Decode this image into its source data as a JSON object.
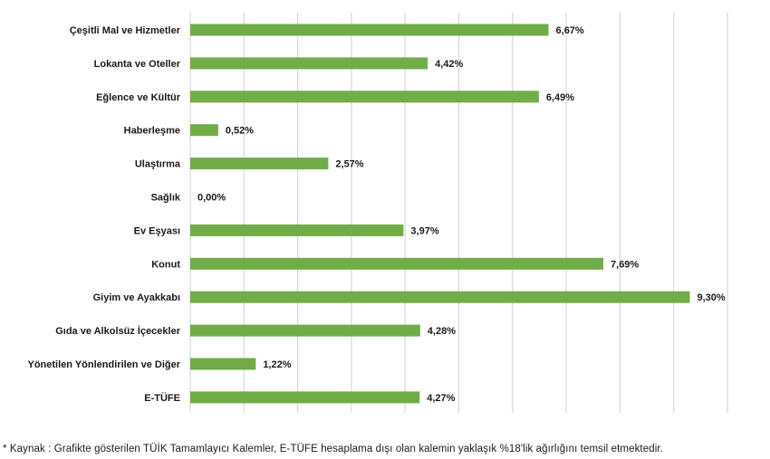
{
  "chart_data": {
    "type": "bar",
    "orientation": "horizontal",
    "categories": [
      "Çeşitli Mal ve Hizmetler",
      "Lokanta ve Oteller",
      "Eğlence ve Kültür",
      "Haberleşme",
      "Ulaştırma",
      "Sağlık",
      "Ev Eşyası",
      "Konut",
      "Giyim ve Ayakkabı",
      "Gıda ve Alkolsüz İçecekler",
      "Yönetilen Yönlendirilen ve Diğer",
      "E-TÜFE"
    ],
    "values": [
      6.67,
      4.42,
      6.49,
      0.52,
      2.57,
      0.0,
      3.97,
      7.69,
      9.3,
      4.28,
      1.22,
      4.27
    ],
    "value_labels": [
      "6,67%",
      "4,42%",
      "6,49%",
      "0,52%",
      "2,57%",
      "0,00%",
      "3,97%",
      "7,69%",
      "9,30%",
      "4,28%",
      "1,22%",
      "4,27%"
    ],
    "xlim": [
      0,
      10
    ],
    "grid": true,
    "bar_color": "#70ad47",
    "grid_color": "#d0d0d0",
    "title": "",
    "xlabel": "",
    "ylabel": ""
  },
  "footnote": "*  Kaynak : Grafikte gösterilen TÜİK Tamamlayıcı Kalemler, E-TÜFE hesaplama dışı olan kalemin yaklaşık %18'lik ağırlığını temsil etmektedir."
}
